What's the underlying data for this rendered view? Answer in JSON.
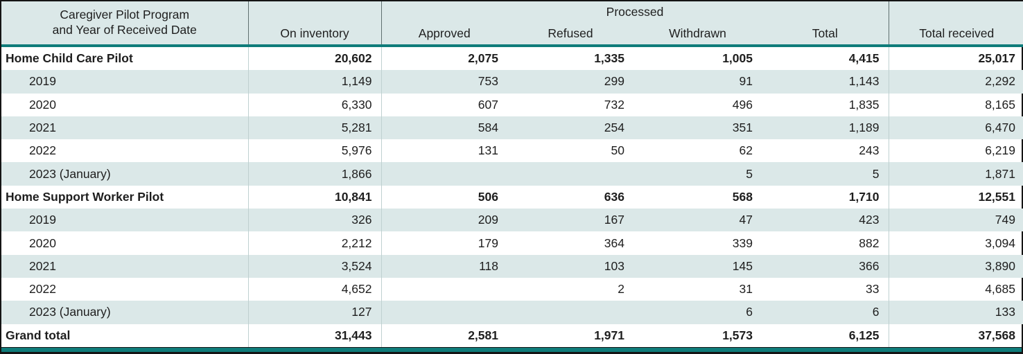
{
  "table": {
    "header": {
      "col1_line1": "Caregiver Pilot Program",
      "col1_line2": "and Year of Received Date",
      "on_inventory": "On inventory",
      "processed_group": "Processed",
      "approved": "Approved",
      "refused": "Refused",
      "withdrawn": "Withdrawn",
      "total": "Total",
      "total_received": "Total received"
    },
    "rows": [
      {
        "label": "Home Child Care Pilot",
        "indent": false,
        "bold": true,
        "values": [
          "20,602",
          "2,075",
          "1,335",
          "1,005",
          "4,415",
          "25,017"
        ]
      },
      {
        "label": "2019",
        "indent": true,
        "bold": false,
        "values": [
          "1,149",
          "753",
          "299",
          "91",
          "1,143",
          "2,292"
        ]
      },
      {
        "label": "2020",
        "indent": true,
        "bold": false,
        "values": [
          "6,330",
          "607",
          "732",
          "496",
          "1,835",
          "8,165"
        ]
      },
      {
        "label": "2021",
        "indent": true,
        "bold": false,
        "values": [
          "5,281",
          "584",
          "254",
          "351",
          "1,189",
          "6,470"
        ]
      },
      {
        "label": "2022",
        "indent": true,
        "bold": false,
        "values": [
          "5,976",
          "131",
          "50",
          "62",
          "243",
          "6,219"
        ]
      },
      {
        "label": "2023 (January)",
        "indent": true,
        "bold": false,
        "values": [
          "1,866",
          "",
          "",
          "5",
          "5",
          "1,871"
        ]
      },
      {
        "label": "Home Support Worker Pilot",
        "indent": false,
        "bold": true,
        "values": [
          "10,841",
          "506",
          "636",
          "568",
          "1,710",
          "12,551"
        ]
      },
      {
        "label": "2019",
        "indent": true,
        "bold": false,
        "values": [
          "326",
          "209",
          "167",
          "47",
          "423",
          "749"
        ]
      },
      {
        "label": "2020",
        "indent": true,
        "bold": false,
        "values": [
          "2,212",
          "179",
          "364",
          "339",
          "882",
          "3,094"
        ]
      },
      {
        "label": "2021",
        "indent": true,
        "bold": false,
        "values": [
          "3,524",
          "118",
          "103",
          "145",
          "366",
          "3,890"
        ]
      },
      {
        "label": "2022",
        "indent": true,
        "bold": false,
        "values": [
          "4,652",
          "",
          "2",
          "31",
          "33",
          "4,685"
        ]
      },
      {
        "label": "2023 (January)",
        "indent": true,
        "bold": false,
        "values": [
          "127",
          "",
          "",
          "6",
          "6",
          "133"
        ]
      },
      {
        "label": "Grand total",
        "indent": false,
        "bold": true,
        "values": [
          "31,443",
          "2,581",
          "1,971",
          "1,573",
          "6,125",
          "37,568"
        ]
      }
    ],
    "colors": {
      "accent_teal": "#0f7c7a",
      "header_background": "#dbe8e8",
      "stripe_background": "#dbe8e8",
      "outer_border": "#141414",
      "text": "#1e1e1e"
    }
  },
  "chart_data": {
    "type": "table",
    "title": "Caregiver Pilot Program applications by year of received date",
    "columns": [
      "On inventory",
      "Approved",
      "Refused",
      "Withdrawn",
      "Total",
      "Total received"
    ],
    "column_groups": [
      {
        "label": "Processed",
        "spans": [
          "Approved",
          "Refused",
          "Withdrawn",
          "Total"
        ]
      }
    ],
    "row_header": "Caregiver Pilot Program and Year of Received Date",
    "rows": [
      {
        "label": "Home Child Care Pilot",
        "group": true,
        "values": [
          20602,
          2075,
          1335,
          1005,
          4415,
          25017
        ]
      },
      {
        "label": "2019",
        "group": false,
        "values": [
          1149,
          753,
          299,
          91,
          1143,
          2292
        ]
      },
      {
        "label": "2020",
        "group": false,
        "values": [
          6330,
          607,
          732,
          496,
          1835,
          8165
        ]
      },
      {
        "label": "2021",
        "group": false,
        "values": [
          5281,
          584,
          254,
          351,
          1189,
          6470
        ]
      },
      {
        "label": "2022",
        "group": false,
        "values": [
          5976,
          131,
          50,
          62,
          243,
          6219
        ]
      },
      {
        "label": "2023 (January)",
        "group": false,
        "values": [
          1866,
          null,
          null,
          5,
          5,
          1871
        ]
      },
      {
        "label": "Home Support Worker Pilot",
        "group": true,
        "values": [
          10841,
          506,
          636,
          568,
          1710,
          12551
        ]
      },
      {
        "label": "2019",
        "group": false,
        "values": [
          326,
          209,
          167,
          47,
          423,
          749
        ]
      },
      {
        "label": "2020",
        "group": false,
        "values": [
          2212,
          179,
          364,
          339,
          882,
          3094
        ]
      },
      {
        "label": "2021",
        "group": false,
        "values": [
          3524,
          118,
          103,
          145,
          366,
          3890
        ]
      },
      {
        "label": "2022",
        "group": false,
        "values": [
          4652,
          null,
          2,
          31,
          33,
          4685
        ]
      },
      {
        "label": "2023 (January)",
        "group": false,
        "values": [
          127,
          null,
          null,
          6,
          6,
          133
        ]
      },
      {
        "label": "Grand total",
        "group": true,
        "values": [
          31443,
          2581,
          1971,
          1573,
          6125,
          37568
        ]
      }
    ]
  }
}
